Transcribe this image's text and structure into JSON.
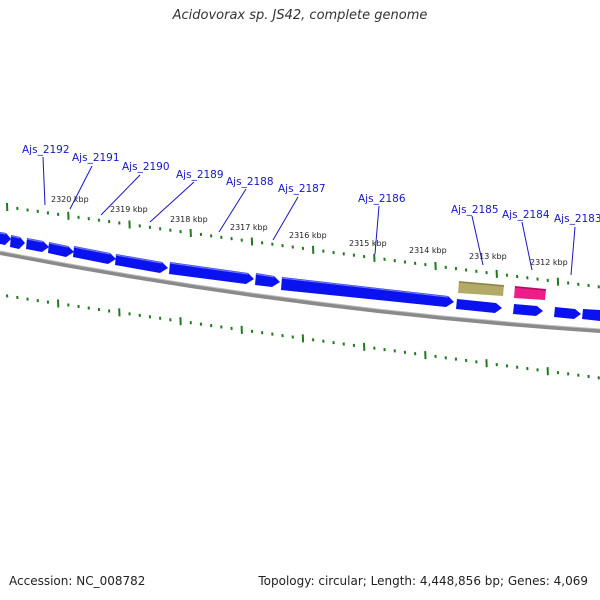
{
  "title": "Acidovorax sp. JS42, complete genome",
  "footer": {
    "accession": "Accession: NC_008782",
    "summary": "Topology: circular; Length: 4,448,856 bp; Genes: 4,069"
  },
  "colors": {
    "gene_fill": "#0a12f0",
    "gene_shade": "#5a66ff",
    "label_blue": "#1515c8",
    "tick_green": "#1f7a1f",
    "backbone_gray": "#7a7a7a",
    "feature_olive": "#b3aa66",
    "feature_pink": "#ee1e88"
  },
  "gene_labels": [
    "Ajs_2192",
    "Ajs_2191",
    "Ajs_2190",
    "Ajs_2189",
    "Ajs_2188",
    "Ajs_2187",
    "Ajs_2186",
    "Ajs_2185",
    "Ajs_2184",
    "Ajs_2183"
  ],
  "scale_labels": [
    "2320 kbp",
    "2319 kbp",
    "2318 kbp",
    "2317 kbp",
    "2316 kbp",
    "2315 kbp",
    "2314 kbp",
    "2313 kbp",
    "2312 kbp"
  ]
}
